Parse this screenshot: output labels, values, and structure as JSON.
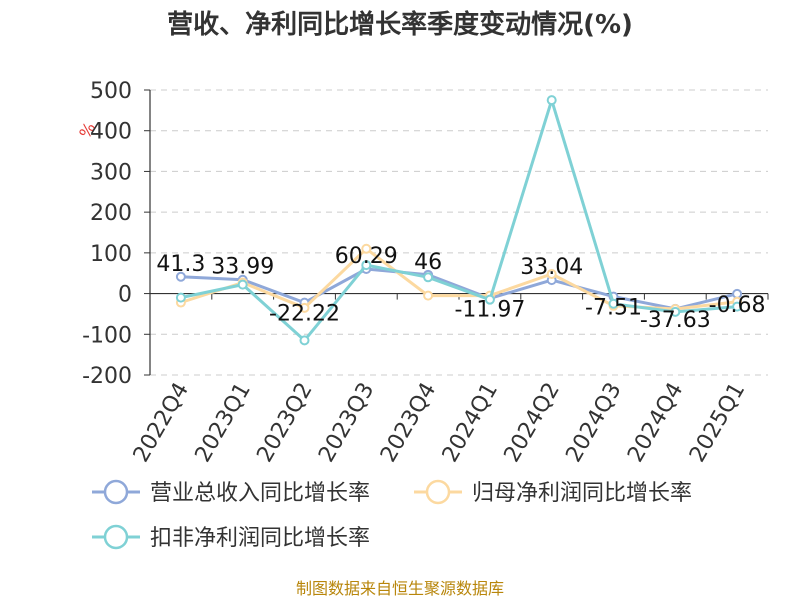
{
  "chart_data": {
    "type": "line",
    "title": "营收、净利同比增长率季度变动情况(%)",
    "ylabel": "%",
    "categories": [
      "2022Q4",
      "2023Q1",
      "2023Q2",
      "2023Q3",
      "2023Q4",
      "2024Q1",
      "2024Q2",
      "2024Q3",
      "2024Q4",
      "2025Q1"
    ],
    "ylim": [
      -200,
      500
    ],
    "yticks": [
      500,
      400,
      300,
      200,
      100,
      0,
      -100,
      -200
    ],
    "grid": true,
    "legend_position": "bottom",
    "series": [
      {
        "name": "营业总收入同比增长率",
        "color": "#8fa8d9",
        "values": [
          41.3,
          33.99,
          -22.22,
          60.29,
          46,
          -11.97,
          33.04,
          -7.51,
          -37.63,
          -0.68
        ],
        "labels": [
          "41.3",
          "33.99",
          "-22.22",
          "60.29",
          "46",
          "-11.97",
          "33.04",
          "-7.51",
          "-37.63",
          "-0.68"
        ]
      },
      {
        "name": "归母净利润同比增长率",
        "color": "#fcd9a0",
        "values": [
          -22,
          27,
          -35,
          110,
          -5,
          -5,
          48,
          -30,
          -38,
          -20
        ]
      },
      {
        "name": "扣非净利润同比增长率",
        "color": "#7fd1d5",
        "values": [
          -10,
          22,
          -115,
          70,
          40,
          -15,
          475,
          -25,
          -45,
          -32
        ]
      }
    ]
  },
  "source": "制图数据来自恒生聚源数据库"
}
